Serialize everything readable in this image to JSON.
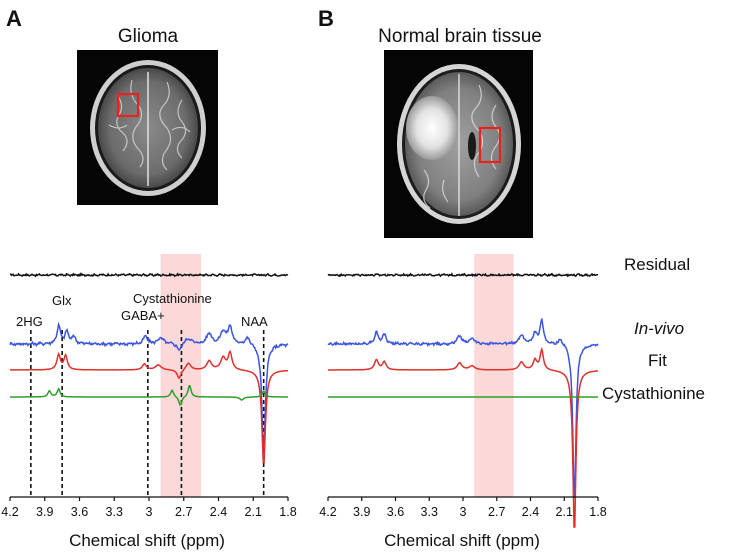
{
  "panels": [
    {
      "letter": "A",
      "title": "Glioma"
    },
    {
      "letter": "B",
      "title": "Normal brain tissue"
    }
  ],
  "trace_labels": {
    "residual": "Residual",
    "invivo": "In-vivo",
    "fit": "Fit",
    "cystathionine": "Cystathionine"
  },
  "peak_labels": {
    "hg2": "2HG",
    "glx": "Glx",
    "gaba": "GABA+",
    "cysta": "Cystathionine",
    "naa": "NAA"
  },
  "colors": {
    "residual": "#111111",
    "invivo": "#3b55e0",
    "fit": "#e0302a",
    "cystathionine": "#2f9e2a",
    "highlight": "#fbd9d9",
    "roi": "#e8231c"
  },
  "chart_data": [
    {
      "type": "line",
      "title": "Glioma",
      "xlabel": "Chemical shift (ppm)",
      "ylabel": "",
      "xlim": [
        4.2,
        1.8
      ],
      "x_reversed": true,
      "xticks": [
        "4.2",
        "3.9",
        "3.6",
        "3.3",
        "3",
        "2.7",
        "2.4",
        "2.1",
        "1.8"
      ],
      "highlight_range_ppm": [
        2.55,
        2.9
      ],
      "marker_lines_ppm": [
        {
          "name": "2HG",
          "ppm": 4.02
        },
        {
          "name": "Glx",
          "ppm": 3.75
        },
        {
          "name": "GABA+",
          "ppm": 3.01
        },
        {
          "name": "Cystathionine",
          "ppm": 2.72
        },
        {
          "name": "NAA",
          "ppm": 2.01
        }
      ],
      "series": [
        {
          "name": "Residual",
          "baseline": 0,
          "noise": 0.04,
          "peaks": []
        },
        {
          "name": "In-vivo",
          "baseline": 0,
          "noise": 0.06,
          "peaks": [
            {
              "ppm": 3.78,
              "amp": 0.9,
              "w": 0.018
            },
            {
              "ppm": 3.71,
              "amp": 0.6,
              "w": 0.018
            },
            {
              "ppm": 3.65,
              "amp": 0.35,
              "w": 0.02
            },
            {
              "ppm": 3.03,
              "amp": 0.4,
              "w": 0.02
            },
            {
              "ppm": 2.9,
              "amp": 0.3,
              "w": 0.03
            },
            {
              "ppm": 2.74,
              "amp": -0.35,
              "w": 0.02
            },
            {
              "ppm": 2.66,
              "amp": 0.3,
              "w": 0.03
            },
            {
              "ppm": 2.48,
              "amp": 0.55,
              "w": 0.025
            },
            {
              "ppm": 2.36,
              "amp": 0.65,
              "w": 0.025
            },
            {
              "ppm": 2.3,
              "amp": 0.9,
              "w": 0.02
            },
            {
              "ppm": 2.15,
              "amp": 0.35,
              "w": 0.03
            },
            {
              "ppm": 2.01,
              "amp": -5.5,
              "w": 0.018
            }
          ]
        },
        {
          "name": "Fit",
          "baseline": 0,
          "noise": 0,
          "peaks": [
            {
              "ppm": 3.78,
              "amp": 0.75,
              "w": 0.018
            },
            {
              "ppm": 3.72,
              "amp": 0.7,
              "w": 0.018
            },
            {
              "ppm": 3.04,
              "amp": 0.3,
              "w": 0.02
            },
            {
              "ppm": 2.92,
              "amp": 0.25,
              "w": 0.03
            },
            {
              "ppm": 2.74,
              "amp": -0.45,
              "w": 0.02
            },
            {
              "ppm": 2.66,
              "amp": 0.35,
              "w": 0.025
            },
            {
              "ppm": 2.48,
              "amp": 0.45,
              "w": 0.025
            },
            {
              "ppm": 2.36,
              "amp": 0.6,
              "w": 0.025
            },
            {
              "ppm": 2.3,
              "amp": 0.85,
              "w": 0.02
            },
            {
              "ppm": 2.01,
              "amp": -4.8,
              "w": 0.018
            }
          ]
        },
        {
          "name": "Cystathionine",
          "baseline": 0,
          "noise": 0,
          "peaks": [
            {
              "ppm": 3.86,
              "amp": 0.3,
              "w": 0.015
            },
            {
              "ppm": 3.78,
              "amp": 0.4,
              "w": 0.015
            },
            {
              "ppm": 2.8,
              "amp": 0.35,
              "w": 0.015
            },
            {
              "ppm": 2.73,
              "amp": -0.45,
              "w": 0.015
            },
            {
              "ppm": 2.65,
              "amp": 0.6,
              "w": 0.015
            },
            {
              "ppm": 2.2,
              "amp": -0.15,
              "w": 0.02
            },
            {
              "ppm": 2.01,
              "amp": 0.3,
              "w": 0.015
            }
          ]
        }
      ]
    },
    {
      "type": "line",
      "title": "Normal brain tissue",
      "xlabel": "Chemical shift (ppm)",
      "ylabel": "",
      "xlim": [
        4.2,
        1.8
      ],
      "x_reversed": true,
      "xticks": [
        "4.2",
        "3.9",
        "3.6",
        "3.3",
        "3",
        "2.7",
        "2.4",
        "2.1",
        "1.8"
      ],
      "highlight_range_ppm": [
        2.55,
        2.9
      ],
      "marker_lines_ppm": [],
      "series": [
        {
          "name": "Residual",
          "baseline": 0,
          "noise": 0.04,
          "peaks": []
        },
        {
          "name": "In-vivo",
          "baseline": 0,
          "noise": 0.05,
          "peaks": [
            {
              "ppm": 3.77,
              "amp": 0.55,
              "w": 0.02
            },
            {
              "ppm": 3.7,
              "amp": 0.45,
              "w": 0.02
            },
            {
              "ppm": 3.03,
              "amp": 0.4,
              "w": 0.025
            },
            {
              "ppm": 2.92,
              "amp": 0.25,
              "w": 0.03
            },
            {
              "ppm": 2.48,
              "amp": 0.45,
              "w": 0.025
            },
            {
              "ppm": 2.36,
              "amp": 0.55,
              "w": 0.02
            },
            {
              "ppm": 2.3,
              "amp": 1.2,
              "w": 0.018
            },
            {
              "ppm": 2.13,
              "amp": 0.3,
              "w": 0.03
            },
            {
              "ppm": 2.01,
              "amp": -8.0,
              "w": 0.016
            }
          ]
        },
        {
          "name": "Fit",
          "baseline": 0,
          "noise": 0,
          "peaks": [
            {
              "ppm": 3.77,
              "amp": 0.5,
              "w": 0.02
            },
            {
              "ppm": 3.7,
              "amp": 0.4,
              "w": 0.02
            },
            {
              "ppm": 3.03,
              "amp": 0.35,
              "w": 0.025
            },
            {
              "ppm": 2.92,
              "amp": 0.2,
              "w": 0.03
            },
            {
              "ppm": 2.48,
              "amp": 0.4,
              "w": 0.025
            },
            {
              "ppm": 2.36,
              "amp": 0.5,
              "w": 0.02
            },
            {
              "ppm": 2.3,
              "amp": 1.0,
              "w": 0.018
            },
            {
              "ppm": 2.01,
              "amp": -8.2,
              "w": 0.016
            }
          ]
        },
        {
          "name": "Cystathionine",
          "baseline": 0,
          "noise": 0,
          "peaks": []
        }
      ]
    }
  ]
}
